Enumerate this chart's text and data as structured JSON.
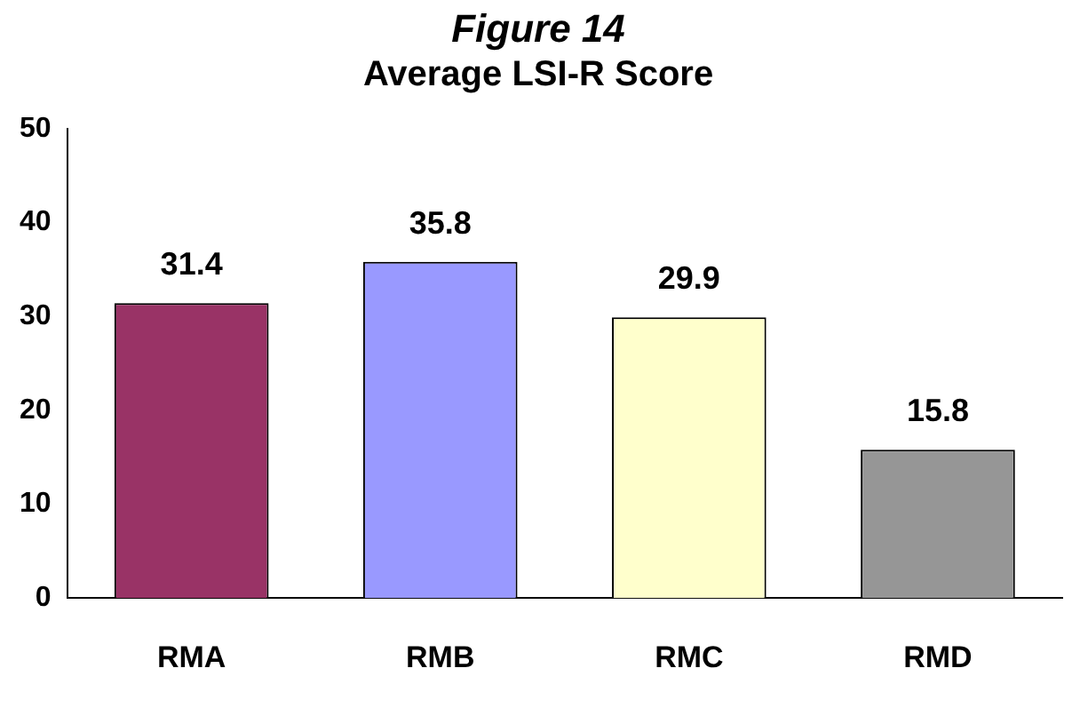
{
  "chart_data": {
    "type": "bar",
    "title": "Figure 14",
    "subtitle": "Average LSI-R Score",
    "categories": [
      "RMA",
      "RMB",
      "RMC",
      "RMD"
    ],
    "values": [
      31.4,
      35.8,
      29.9,
      15.8
    ],
    "colors": [
      "#993366",
      "#9999ff",
      "#ffffcc",
      "#969696"
    ],
    "ylim": [
      0,
      50
    ],
    "yticks": [
      0,
      10,
      20,
      30,
      40,
      50
    ],
    "grid": false,
    "legend": false,
    "data_labels": true
  }
}
